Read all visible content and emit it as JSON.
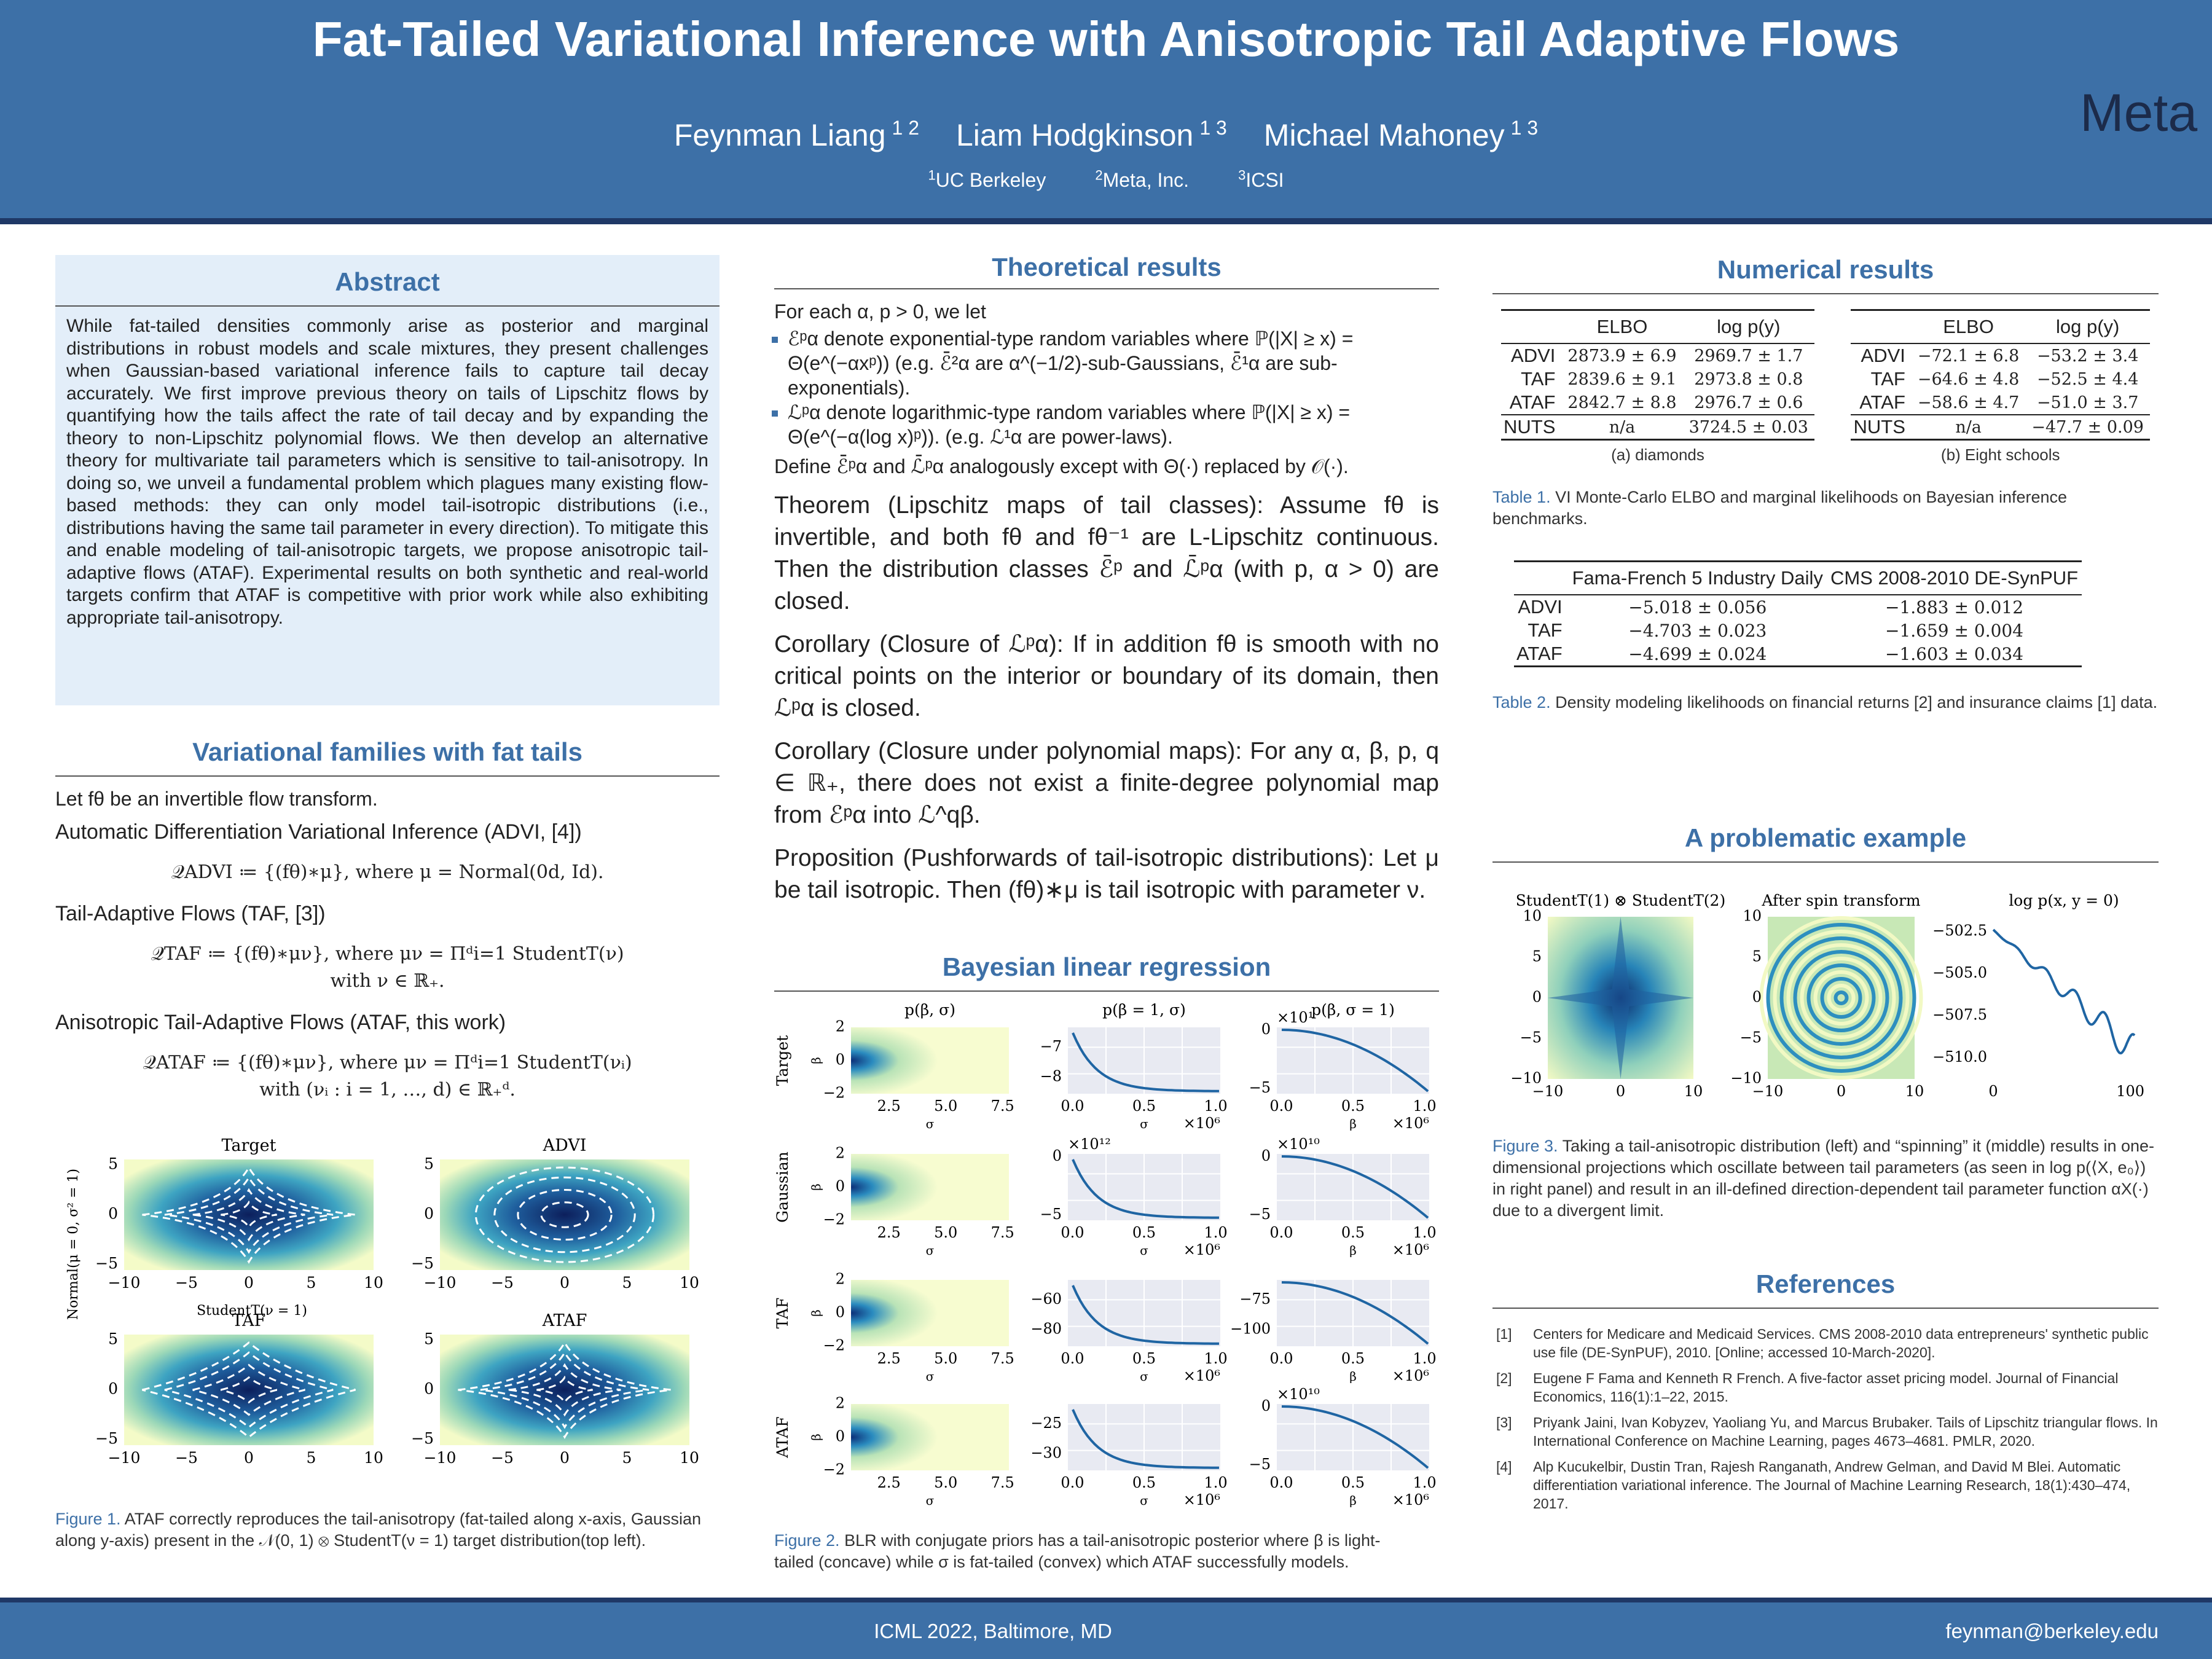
{
  "header": {
    "title": "Fat-Tailed Variational Inference with Anisotropic Tail Adaptive Flows",
    "authors": [
      {
        "name": "Feynman Liang",
        "affiliations": "1 2"
      },
      {
        "name": "Liam Hodgkinson",
        "affiliations": "1 3"
      },
      {
        "name": "Michael Mahoney",
        "affiliations": "1 3"
      }
    ],
    "institutions": [
      {
        "number": "1",
        "name": "UC Berkeley"
      },
      {
        "number": "2",
        "name": "Meta, Inc."
      },
      {
        "number": "3",
        "name": "ICSI"
      }
    ],
    "logo": "Meta"
  },
  "abstract": {
    "heading": "Abstract",
    "text": "While fat-tailed densities commonly arise as posterior and marginal distributions in robust models and scale mixtures, they present challenges when Gaussian-based variational inference fails to capture tail decay accurately. We first improve previous theory on tails of Lipschitz flows by quantifying how the tails affect the rate of tail decay and by expanding the theory to non-Lipschitz polynomial flows. We then develop an alternative theory for multivariate tail parameters which is sensitive to tail-anisotropy. In doing so, we unveil a fundamental problem which plagues many existing flow-based methods: they can only model tail-isotropic distributions (i.e., distributions having the same tail parameter in every direction). To mitigate this and enable modeling of tail-anisotropic targets, we propose anisotropic tail-adaptive flows (ATAF). Experimental results on both synthetic and real-world targets confirm that ATAF is competitive with prior work while also exhibiting appropriate tail-anisotropy."
  },
  "variational": {
    "heading": "Variational families with fat tails",
    "intro": "Let fθ be an invertible flow transform.",
    "families": [
      {
        "label": "Automatic Differentiation Variational Inference (ADVI, [4])",
        "formula": "𝒬ADVI ≔ {(fθ)∗μ}, where μ = Normal(0d, Id)."
      },
      {
        "label": "Tail-Adaptive Flows (TAF, [3])",
        "formula": "𝒬TAF ≔ {(fθ)∗μν}, where μν = Πᵈi=1 StudentT(ν) with ν ∈ ℝ₊."
      },
      {
        "label": "Anisotropic Tail-Adaptive Flows (ATAF, this work)",
        "formula": "𝒬ATAF ≔ {(fθ)∗μν}, where μν = Πᵈi=1 StudentT(νᵢ) with (νᵢ : i = 1, …, d) ∈ ℝ₊ᵈ."
      }
    ]
  },
  "figure1": {
    "ylabel": "Normal(μ = 0, σ² = 1)",
    "xlabel": "StudentT(ν = 1)",
    "panels": [
      {
        "title": "Target",
        "yticks": [
          "5",
          "0",
          "−5"
        ],
        "xticks": [
          "−10",
          "−5",
          "0",
          "5",
          "10"
        ]
      },
      {
        "title": "ADVI",
        "yticks": [
          "5",
          "0",
          "−5"
        ],
        "xticks": [
          "−10",
          "−5",
          "0",
          "5",
          "10"
        ]
      },
      {
        "title": "TAF",
        "yticks": [
          "5",
          "0",
          "−5"
        ],
        "xticks": [
          "−10",
          "−5",
          "0",
          "5",
          "10"
        ]
      },
      {
        "title": "ATAF",
        "yticks": [
          "5",
          "0",
          "−5"
        ],
        "xticks": [
          "−10",
          "−5",
          "0",
          "5",
          "10"
        ]
      }
    ],
    "caption_label": "Figure 1.",
    "caption": "ATAF correctly reproduces the tail-anisotropy (fat-tailed along x-axis, Gaussian along y-axis) present in the 𝒩(0, 1) ⊗ StudentT(ν = 1) target distribution(top left)."
  },
  "theory": {
    "heading": "Theoretical results",
    "intro": "For each α, p > 0, we let",
    "bullets": [
      "ℰᵖα denote exponential-type random variables where ℙ(|X| ≥ x) = Θ(e^(−αxᵖ)) (e.g. ℰ̄²α are α^(−1/2)-sub-Gaussians, ℰ̄¹α are sub-exponentials).",
      "ℒᵖα denote logarithmic-type random variables where ℙ(|X| ≥ x) = Θ(e^(−α(log x)ᵖ)). (e.g. ℒ¹α are power-laws)."
    ],
    "define": "Define ℰ̄ᵖα and ℒ̄ᵖα analogously except with Θ(·) replaced by 𝒪(·).",
    "statements": [
      {
        "label": "Theorem (Lipschitz maps of tail classes)",
        "text": ": Assume fθ is invertible, and both fθ and fθ⁻¹ are L-Lipschitz continuous. Then the distribution classes ℰ̄ᵖ and ℒ̄ᵖα (with p, α > 0) are closed."
      },
      {
        "label": "Corollary (Closure of ℒᵖα)",
        "text": ": If in addition fθ is smooth with no critical points on the interior or boundary of its domain, then ℒᵖα is closed."
      },
      {
        "label": "Corollary (Closure under polynomial maps)",
        "text": ": For any α, β, p, q ∈ ℝ₊, there does not exist a finite-degree polynomial map from ℰᵖα into ℒ^qβ."
      },
      {
        "label": "Proposition (Pushforwards of tail-isotropic distributions)",
        "text": ": Let μ be tail isotropic. Then (fθ)∗μ is tail isotropic with parameter ν."
      }
    ]
  },
  "figure2": {
    "heading": "Bayesian linear regression",
    "column_titles": [
      "p(β, σ)",
      "p(β = 1, σ)",
      "p(β, σ = 1)"
    ],
    "rows": [
      {
        "label": "Target",
        "panels": [
          {
            "yticks": [
              "2",
              "0",
              "−2"
            ],
            "xticks": [
              "2.5",
              "5.0",
              "7.5"
            ],
            "xlabel": "σ",
            "ylabel": "β"
          },
          {
            "yticks": [
              "−7",
              "−8"
            ],
            "xticks": [
              "0.0",
              "0.5",
              "1.0"
            ],
            "xlabel": "σ",
            "xmult": "×10⁶"
          },
          {
            "yticks": [
              "0",
              "−5"
            ],
            "xticks": [
              "0.0",
              "0.5",
              "1.0"
            ],
            "xlabel": "β",
            "xmult": "×10⁶",
            "ymult": "×10¹"
          }
        ]
      },
      {
        "label": "Gaussian",
        "panels": [
          {
            "yticks": [
              "2",
              "0",
              "−2"
            ],
            "xticks": [
              "2.5",
              "5.0",
              "7.5"
            ],
            "xlabel": "σ",
            "ylabel": "β"
          },
          {
            "yticks": [
              "0",
              "−5"
            ],
            "xticks": [
              "0.0",
              "0.5",
              "1.0"
            ],
            "xlabel": "σ",
            "xmult": "×10⁶",
            "ymult": "×10¹²"
          },
          {
            "yticks": [
              "0",
              "−5"
            ],
            "xticks": [
              "0.0",
              "0.5",
              "1.0"
            ],
            "xlabel": "β",
            "xmult": "×10⁶",
            "ymult": "×10¹⁰"
          }
        ]
      },
      {
        "label": "TAF",
        "panels": [
          {
            "yticks": [
              "2",
              "0",
              "−2"
            ],
            "xticks": [
              "2.5",
              "5.0",
              "7.5"
            ],
            "xlabel": "σ",
            "ylabel": "β"
          },
          {
            "yticks": [
              "−60",
              "−80"
            ],
            "xticks": [
              "0.0",
              "0.5",
              "1.0"
            ],
            "xlabel": "σ",
            "xmult": "×10⁶"
          },
          {
            "yticks": [
              "−75",
              "−100"
            ],
            "xticks": [
              "0.0",
              "0.5",
              "1.0"
            ],
            "xlabel": "β",
            "xmult": "×10⁶"
          }
        ]
      },
      {
        "label": "ATAF",
        "panels": [
          {
            "yticks": [
              "2",
              "0",
              "−2"
            ],
            "xticks": [
              "2.5",
              "5.0",
              "7.5"
            ],
            "xlabel": "σ",
            "ylabel": "β"
          },
          {
            "yticks": [
              "−25",
              "−30"
            ],
            "xticks": [
              "0.0",
              "0.5",
              "1.0"
            ],
            "xlabel": "σ",
            "xmult": "×10⁶"
          },
          {
            "yticks": [
              "0",
              "−5"
            ],
            "xticks": [
              "0.0",
              "0.5",
              "1.0"
            ],
            "xlabel": "β",
            "xmult": "×10⁶",
            "ymult": "×10¹⁰"
          }
        ]
      }
    ],
    "caption_label": "Figure 2.",
    "caption": "BLR with conjugate priors has a tail-anisotropic posterior where β is light-tailed (concave) while σ is fat-tailed (convex) which ATAF successfully models."
  },
  "numerical": {
    "heading": "Numerical results",
    "table1": {
      "subtables": [
        {
          "caption": "(a) diamonds",
          "columns": [
            "ELBO",
            "log p(y)"
          ],
          "rows": [
            {
              "label": "ADVI",
              "cells": [
                "2873.9 ± 6.9",
                "2969.7 ± 1.7"
              ]
            },
            {
              "label": "TAF",
              "cells": [
                "2839.6 ± 9.1",
                "2973.8 ± 0.8"
              ]
            },
            {
              "label": "ATAF",
              "cells": [
                "2842.7 ± 8.8",
                "2976.7 ± 0.6"
              ]
            },
            {
              "label": "NUTS",
              "cells": [
                "n/a",
                "3724.5 ± 0.03"
              ]
            }
          ]
        },
        {
          "caption": "(b) Eight schools",
          "columns": [
            "ELBO",
            "log p(y)"
          ],
          "rows": [
            {
              "label": "ADVI",
              "cells": [
                "−72.1 ± 6.8",
                "−53.2 ± 3.4"
              ]
            },
            {
              "label": "TAF",
              "cells": [
                "−64.6 ± 4.8",
                "−52.5 ± 4.4"
              ]
            },
            {
              "label": "ATAF",
              "cells": [
                "−58.6 ± 4.7",
                "−51.0 ± 3.7"
              ]
            },
            {
              "label": "NUTS",
              "cells": [
                "n/a",
                "−47.7 ± 0.09"
              ]
            }
          ]
        }
      ],
      "caption_label": "Table 1.",
      "caption": "VI Monte-Carlo ELBO and marginal likelihoods on Bayesian inference benchmarks."
    },
    "table2": {
      "columns": [
        "Fama-French 5 Industry Daily",
        "CMS 2008-2010 DE-SynPUF"
      ],
      "rows": [
        {
          "label": "ADVI",
          "cells": [
            "−5.018 ± 0.056",
            "−1.883 ± 0.012"
          ]
        },
        {
          "label": "TAF",
          "cells": [
            "−4.703 ± 0.023",
            "−1.659 ± 0.004"
          ]
        },
        {
          "label": "ATAF",
          "cells": [
            "−4.699 ± 0.024",
            "−1.603 ± 0.034"
          ]
        }
      ],
      "caption_label": "Table 2.",
      "caption": "Density modeling likelihoods on financial returns [2] and insurance claims [1] data."
    }
  },
  "figure3": {
    "heading": "A problematic example",
    "panels": [
      {
        "title": "StudentT(1) ⊗ StudentT(2)",
        "yticks": [
          "10",
          "5",
          "0",
          "−5",
          "−10"
        ],
        "xticks": [
          "−10",
          "0",
          "10"
        ]
      },
      {
        "title": "After spin transform",
        "yticks": [
          "10",
          "5",
          "0",
          "−5",
          "−10"
        ],
        "xticks": [
          "−10",
          "0",
          "10"
        ]
      },
      {
        "title": "log p(x, y = 0)",
        "yticks": [
          "−502.5",
          "−505.0",
          "−507.5",
          "−510.0"
        ],
        "xticks": [
          "0",
          "100"
        ]
      }
    ],
    "caption_label": "Figure 3.",
    "caption": "Taking a tail-anisotropic distribution (left) and “spinning” it (middle) results in one-dimensional projections which oscillate between tail parameters (as seen in log p(⟨X, e₀⟩) in right panel) and result in an ill-defined direction-dependent tail parameter function αX(·) due to a divergent limit."
  },
  "references": {
    "heading": "References",
    "items": [
      {
        "number": "[1]",
        "text": "Centers for Medicare and Medicaid Services. CMS 2008-2010 data entrepreneurs' synthetic public use file (DE-SynPUF), 2010. [Online; accessed 10-March-2020]."
      },
      {
        "number": "[2]",
        "text": "Eugene F Fama and Kenneth R French. A five-factor asset pricing model. Journal of Financial Economics, 116(1):1–22, 2015."
      },
      {
        "number": "[3]",
        "text": "Priyank Jaini, Ivan Kobyzev, Yaoliang Yu, and Marcus Brubaker. Tails of Lipschitz triangular flows. In International Conference on Machine Learning, pages 4673–4681. PMLR, 2020."
      },
      {
        "number": "[4]",
        "text": "Alp Kucukelbir, Dustin Tran, Rajesh Ranganath, Andrew Gelman, and David M Blei. Automatic differentiation variational inference. The Journal of Machine Learning Research, 18(1):430–474, 2017."
      }
    ]
  },
  "footer": {
    "venue": "ICML 2022, Baltimore, MD",
    "email": "feynman@berkeley.edu"
  }
}
